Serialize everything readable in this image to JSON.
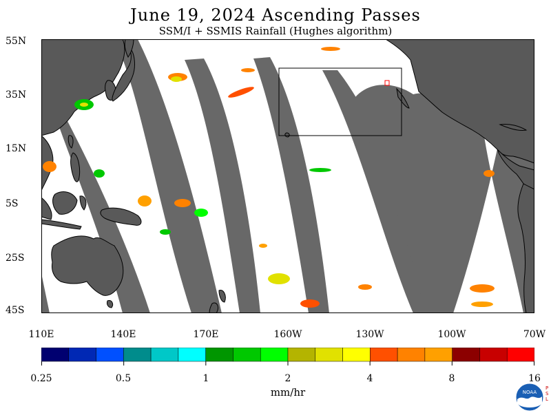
{
  "header": {
    "title": "June 19, 2024  Ascending Passes",
    "subtitle": "SSM/I + SSMIS Rainfall (Hughes algorithm)"
  },
  "map": {
    "lat_labels": [
      "55N",
      "35N",
      "15N",
      "5S",
      "25S",
      "45S"
    ],
    "lon_labels": [
      "110E",
      "140E",
      "170E",
      "160W",
      "130W",
      "100W",
      "70W"
    ],
    "colors": {
      "land": "#595959",
      "swath_gap": "#686868",
      "ocean": "#ffffff",
      "coastline": "#000000"
    }
  },
  "colorbar": {
    "colors": [
      "#000070",
      "#0028b4",
      "#0050ff",
      "#008c8c",
      "#00c8c8",
      "#00ffff",
      "#009600",
      "#00c800",
      "#00ff00",
      "#b4b400",
      "#e1e100",
      "#ffff00",
      "#ff5000",
      "#ff8200",
      "#ffa000",
      "#8c0000",
      "#c80000",
      "#ff0000"
    ],
    "tick_labels": [
      "0.25",
      "0.5",
      "1",
      "2",
      "4",
      "8",
      "16"
    ],
    "units": "mm/hr"
  },
  "logo": {
    "text": "NOAA",
    "side_text": [
      "P",
      "S",
      "L"
    ]
  }
}
